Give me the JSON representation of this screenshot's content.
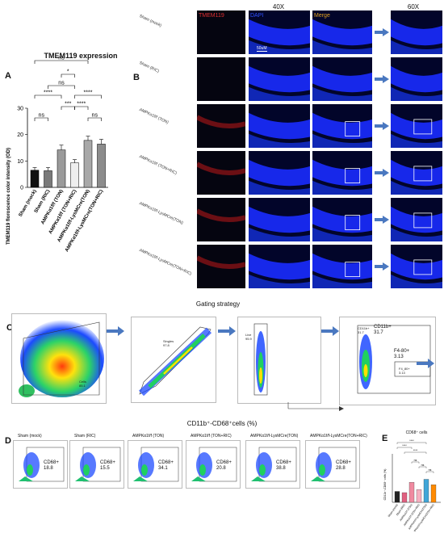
{
  "panel_a": {
    "label": "A",
    "title": "TMEM119 expression",
    "ylabel": "TMEM119 floroscence color intensity (OD)",
    "yticks": [
      "0",
      "10",
      "20",
      "30"
    ],
    "chart_data": {
      "type": "bar",
      "categories": [
        "Sham (mock)",
        "Sham (RIC)",
        "AMPKα1f/f (TON)",
        "AMPKα1f/f (TON+RIC)",
        "AMPKα1f/f-LysMCre(TON)",
        "AMPKα1f/f-LysMCre(TON+RIC)"
      ],
      "values": [
        6.5,
        6.3,
        14.2,
        9.3,
        17.8,
        16.4
      ],
      "errors": [
        1.0,
        1.2,
        1.8,
        1.2,
        1.6,
        1.8
      ],
      "colors": [
        "#111111",
        "#7a7a7a",
        "#9a9a9a",
        "#eeeeee",
        "#a8a8a8",
        "#8c8c8c"
      ],
      "ylim": [
        0,
        30
      ],
      "title": "TMEM119 expression",
      "ylabel": "TMEM119 floroscence color intensity (OD)"
    },
    "sig_labels": [
      "ns",
      "*",
      "ns",
      "****",
      "****",
      "***",
      "****",
      "ns",
      "ns"
    ]
  },
  "panel_b": {
    "label": "B",
    "col_heads": [
      "TMEM119",
      "DAPI",
      "Merge"
    ],
    "mag_40": "40X",
    "mag_60": "60X",
    "scale_bar": "50uM",
    "rows": [
      "Sham (mock)",
      "Sham (RIC)",
      "AMPKα1f/f (TON)",
      "AMPKα1f/f (TON+RIC)",
      "AMPKα1f/f-LysMCre(TON)",
      "AMPKα1f/f-LysMCre(TON+RIC)"
    ]
  },
  "gating": {
    "title": "Gating strategy",
    "label": "C",
    "cells_gate": "Cells\n85.1",
    "singles": "Singles\n97.8",
    "live": "Live\n95.9",
    "cd11b_small": "CD11b+\n31.7",
    "cd11b_big": "CD11b+\n31.7",
    "f480": "F4-80+\n3.13",
    "f480_small": "F4_80+\n3.13",
    "axes": [
      "FSC-A",
      "SSC-A",
      "FSC-H",
      "FSC-A",
      "SSC-A",
      "Comp-BV510-A :: Zombie Aqua",
      "Comp-PE-Cy7-A :: CD11b",
      "Comp-BV421-A :: F4_80"
    ]
  },
  "panel_d": {
    "label": "D",
    "title": "CD11b⁺-CD68⁺cells (%)",
    "groups": [
      {
        "name": "Sham (mock)",
        "value": "CD68+\n18.8"
      },
      {
        "name": "Sham (RIC)",
        "value": "CD68+\n15.5"
      },
      {
        "name": "AMPKα1f/f (TON)",
        "value": "CD68+\n34.1"
      },
      {
        "name": "AMPKα1f/f (TON+RIC)",
        "value": "CD68+\n20.8"
      },
      {
        "name": "AMPKα1f/f-LysMCre(TON)",
        "value": "CD68+\n38.8"
      },
      {
        "name": "AMPKα1f/f-LysMCre(TON+RIC)",
        "value": "CD68+\n28.8"
      }
    ]
  },
  "panel_e": {
    "label": "E",
    "title": "CD68⁺ cells",
    "ylabel": "CD11b⁺-CD68⁺ cells (%)",
    "chart_data": {
      "type": "bar",
      "categories": [
        "Sham (mock)",
        "Sham (RIC)",
        "AMPKα1f/f (TON)",
        "AMPKα1f/f (TON+RIC)",
        "AMPKα1f/f-LysMCre(TON)",
        "AMPKα1f/f-LysMCre(TON+RIC)"
      ],
      "values": [
        18,
        16,
        33,
        21,
        38,
        29
      ],
      "colors": [
        "#222222",
        "#e06080",
        "#f08aa0",
        "#f7b0c0",
        "#40a6d8",
        "#ff8a00"
      ],
      "ylim": [
        0,
        80
      ]
    },
    "sig_labels": [
      "****",
      "****",
      "****",
      "ns",
      "ns",
      "ns"
    ]
  }
}
